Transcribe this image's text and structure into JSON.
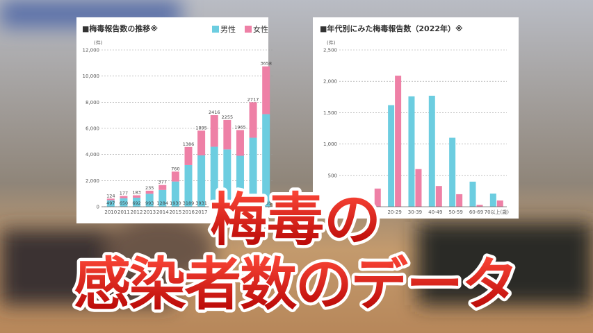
{
  "overlay": {
    "line1": "梅毒の",
    "line2": "感染者数のデータ"
  },
  "chart_data": [
    {
      "type": "stacked_bar",
      "title": "■梅毒報告数の推移※",
      "unit_label": "(件)",
      "categories": [
        "2010",
        "2011",
        "2012",
        "2013",
        "2014",
        "2015",
        "2016",
        "2017",
        null,
        null,
        null,
        null,
        null
      ],
      "series": [
        {
          "name": "男性",
          "color": "#6ccde0",
          "values": [
            497,
            650,
            692,
            993,
            1284,
            1930,
            3189,
            3931,
            4591,
            4387,
            3902,
            5281,
            7085
          ]
        },
        {
          "name": "女性",
          "color": "#ee80a6",
          "values": [
            124,
            177,
            183,
            235,
            377,
            760,
            1386,
            1895,
            2416,
            2255,
            1965,
            2717,
            3658
          ]
        }
      ],
      "ylim": [
        0,
        12000
      ],
      "yticks": [
        0,
        {
          "value": 2000,
          "label": "2,000"
        },
        {
          "value": 4000,
          "label": "4,000"
        },
        {
          "value": 6000,
          "label": "6,000"
        },
        {
          "value": 8000,
          "label": "8,000"
        },
        {
          "value": 10000,
          "label": "10,000"
        },
        {
          "value": 12000,
          "label": "12,000"
        }
      ],
      "grid": true
    },
    {
      "type": "grouped_bar",
      "title": "■年代別にみた梅毒報告数（2022年）※",
      "unit_label": "(件)",
      "categories": [
        null,
        "20-29",
        "30-39",
        "40-49",
        "50-59",
        "60-69",
        "70以上(歳)"
      ],
      "series": [
        {
          "name": "男性",
          "color": "#6ccde0",
          "values": [
            null,
            1620,
            1760,
            1770,
            1100,
            400,
            210
          ]
        },
        {
          "name": "女性",
          "color": "#ee80a6",
          "values": [
            290,
            2090,
            600,
            330,
            200,
            30,
            100
          ]
        }
      ],
      "ylim": [
        0,
        2500
      ],
      "yticks": [
        {
          "value": 500,
          "label": "500"
        },
        {
          "value": 1000,
          "label": "1,000"
        },
        {
          "value": 1500,
          "label": "1,500"
        },
        {
          "value": 2000,
          "label": "2,000"
        },
        {
          "value": 2500,
          "label": "2,500"
        }
      ],
      "grid": true
    }
  ]
}
